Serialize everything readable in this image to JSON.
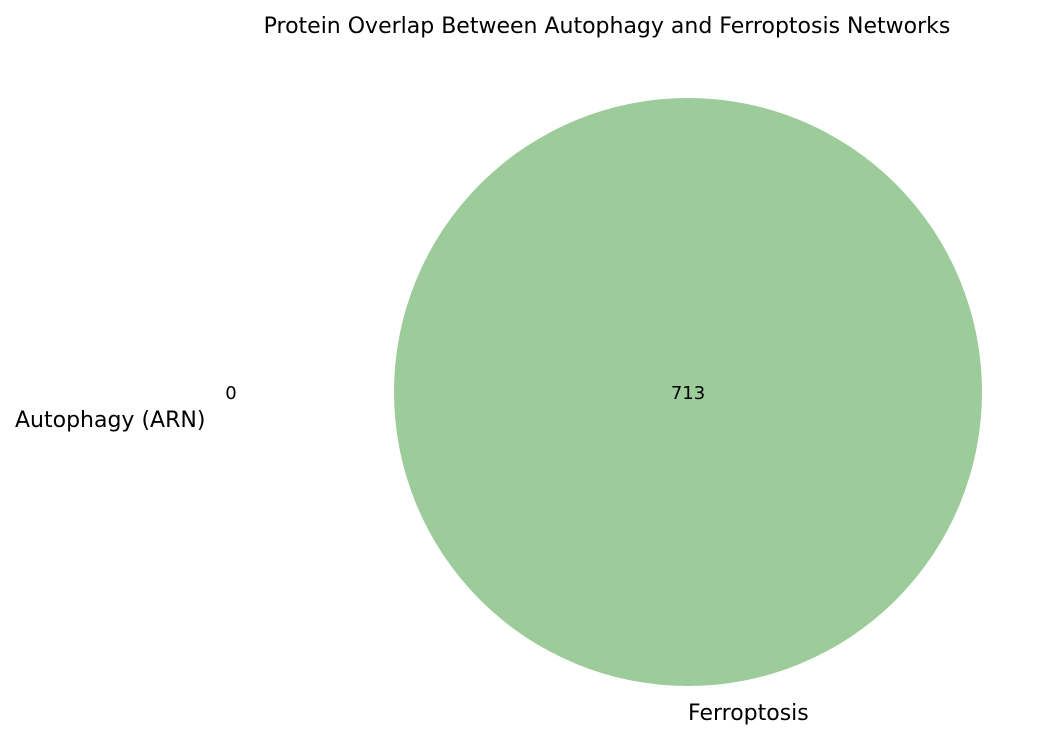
{
  "chart_data": {
    "type": "venn",
    "title": "Protein Overlap Between Autophagy and Ferroptosis Networks",
    "sets": [
      {
        "name": "Autophagy (ARN)",
        "only_count": "0",
        "color": "#ffffff"
      },
      {
        "name": "Ferroptosis",
        "only_count": "713",
        "color": "#9bcc99"
      }
    ],
    "overlap_count": ""
  }
}
